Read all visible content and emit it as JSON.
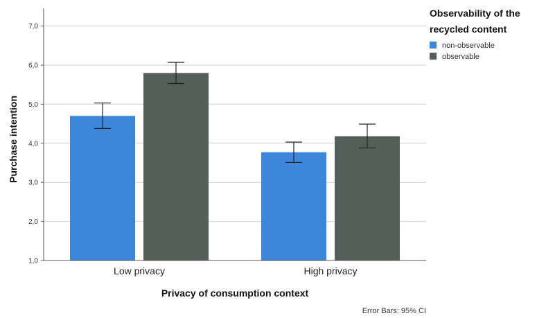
{
  "chart_data": {
    "type": "bar",
    "categories": [
      "Low privacy",
      "High privacy"
    ],
    "series": [
      {
        "name": "non-observable",
        "color": "#3c86dc",
        "values": [
          4.7,
          3.77
        ],
        "ci_low": [
          4.38,
          3.51
        ],
        "ci_high": [
          5.03,
          4.03
        ]
      },
      {
        "name": "observable",
        "color": "#555f5a",
        "values": [
          5.8,
          4.18
        ],
        "ci_low": [
          5.53,
          3.88
        ],
        "ci_high": [
          6.07,
          4.49
        ]
      }
    ],
    "xlabel": "Privacy of consumption context",
    "ylabel": "Purchase intention",
    "ylim": [
      1.0,
      7.4
    ],
    "yticks": [
      "1,0",
      "2,0",
      "3,0",
      "4,0",
      "5,0",
      "6,0",
      "7,0"
    ],
    "grid": true,
    "legend": {
      "title_lines": [
        "Observability of the",
        "recycled content"
      ],
      "placement": "top-right"
    },
    "footnote": "Error Bars: 95% CI"
  }
}
